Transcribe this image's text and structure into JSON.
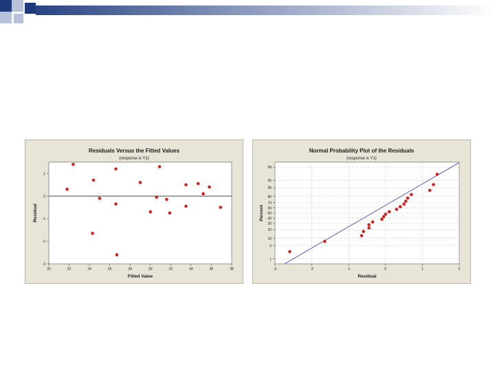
{
  "slide": {
    "colors": {
      "dark_square": "#1f3a7a",
      "light_square": "#b8c2da",
      "bar_start": "#2a4484",
      "bar_end": "#ffffff"
    }
  },
  "chart_data": [
    {
      "type": "scatter",
      "title": "Residuals Versus the Fitted Values",
      "subtitle": "(response is Y1)",
      "xlabel": "Fitted Value",
      "ylabel": "Residual",
      "xlim": [
        20,
        38
      ],
      "ylim": [
        -3,
        1.5
      ],
      "xticks": [
        20,
        22,
        24,
        26,
        28,
        30,
        32,
        34,
        36,
        38
      ],
      "yticks": [
        -3,
        -2,
        -1,
        0,
        1
      ],
      "reference_line_y": 0,
      "grid": false,
      "point_color": "#d42020",
      "points": [
        [
          21.8,
          0.3
        ],
        [
          22.4,
          1.4
        ],
        [
          24.4,
          0.7
        ],
        [
          24.3,
          -1.65
        ],
        [
          25.0,
          -0.1
        ],
        [
          26.6,
          1.2
        ],
        [
          26.6,
          -0.35
        ],
        [
          26.7,
          -2.6
        ],
        [
          29.0,
          0.6
        ],
        [
          30.0,
          -0.7
        ],
        [
          30.6,
          -0.05
        ],
        [
          30.9,
          1.3
        ],
        [
          31.6,
          -0.15
        ],
        [
          31.9,
          -0.75
        ],
        [
          33.5,
          0.5
        ],
        [
          33.5,
          -0.45
        ],
        [
          34.7,
          0.55
        ],
        [
          35.2,
          0.1
        ],
        [
          35.8,
          0.4
        ],
        [
          36.9,
          -0.5
        ]
      ]
    },
    {
      "type": "scatter",
      "title": "Normal Probability Plot of the Residuals",
      "subtitle": "(response is Y1)",
      "xlabel": "Residual",
      "ylabel": "Percent",
      "xlim": [
        -3,
        2
      ],
      "xticks": [
        -3,
        -2,
        -1,
        0,
        1,
        2
      ],
      "yscale": "normal-probability",
      "yticks": [
        1,
        5,
        10,
        20,
        30,
        40,
        50,
        60,
        70,
        80,
        90,
        95,
        99
      ],
      "grid": true,
      "line_color": "#3030c0",
      "point_color": "#d42020",
      "fit_line": {
        "x": [
          -2.9,
          2.3
        ],
        "percent": [
          0.3,
          99.8
        ]
      },
      "points": [
        [
          -2.6,
          2.5
        ],
        [
          -1.65,
          7.5
        ],
        [
          -0.65,
          12.5
        ],
        [
          -0.6,
          17.5
        ],
        [
          -0.45,
          22.5
        ],
        [
          -0.45,
          27.5
        ],
        [
          -0.35,
          32.5
        ],
        [
          -0.1,
          37.5
        ],
        [
          -0.05,
          42.5
        ],
        [
          0.0,
          47.5
        ],
        [
          0.1,
          52.5
        ],
        [
          0.3,
          57.5
        ],
        [
          0.4,
          62.5
        ],
        [
          0.5,
          67.5
        ],
        [
          0.55,
          72.5
        ],
        [
          0.6,
          77.5
        ],
        [
          0.7,
          82.5
        ],
        [
          1.2,
          87.5
        ],
        [
          1.3,
          92.5
        ],
        [
          1.4,
          97.5
        ]
      ]
    }
  ]
}
